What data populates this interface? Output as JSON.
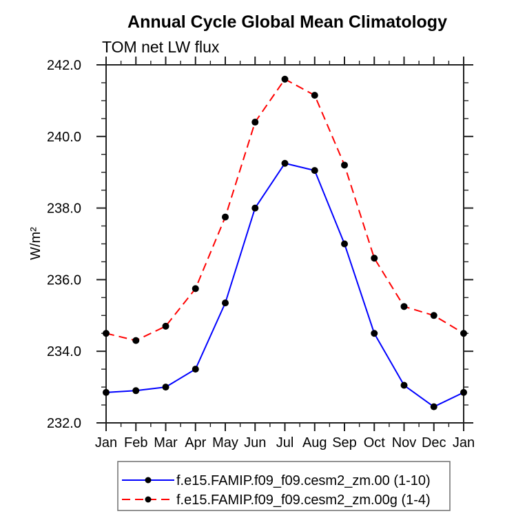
{
  "title": "Annual Cycle Global Mean Climatology",
  "subtitle": "TOM net LW flux",
  "chart_data": {
    "type": "line",
    "title": "Annual Cycle Global Mean Climatology",
    "subtitle": "TOM net LW flux",
    "xlabel": "",
    "ylabel": "W/m²",
    "categories": [
      "Jan",
      "Feb",
      "Mar",
      "Apr",
      "May",
      "Jun",
      "Jul",
      "Aug",
      "Sep",
      "Oct",
      "Nov",
      "Dec",
      "Jan"
    ],
    "series": [
      {
        "name": "f.e15.FAMIP.f09_f09.cesm2_zm.00 (1-10)",
        "color": "#0000ff",
        "line_style": "solid",
        "marker": "black-dot",
        "values": [
          232.85,
          232.9,
          233.0,
          233.5,
          235.35,
          238.0,
          239.25,
          239.05,
          237.0,
          234.5,
          233.05,
          232.45,
          232.85
        ]
      },
      {
        "name": "f.e15.FAMIP.f09_f09.cesm2_zm.00g (1-4)",
        "color": "#ff0000",
        "line_style": "dashed",
        "marker": "black-dot",
        "values": [
          234.5,
          234.3,
          234.7,
          235.75,
          237.75,
          240.4,
          241.6,
          241.15,
          239.2,
          236.6,
          235.25,
          235.0,
          234.5
        ]
      }
    ],
    "ylim": [
      232.0,
      242.0
    ],
    "yticks": [
      232.0,
      234.0,
      236.0,
      238.0,
      240.0,
      242.0
    ],
    "ytick_format_decimals": 1,
    "y_minor_step": 0.5,
    "x_minor_ticks": true,
    "grid": false,
    "legend_position": "bottom",
    "marker_color": "#000000"
  }
}
